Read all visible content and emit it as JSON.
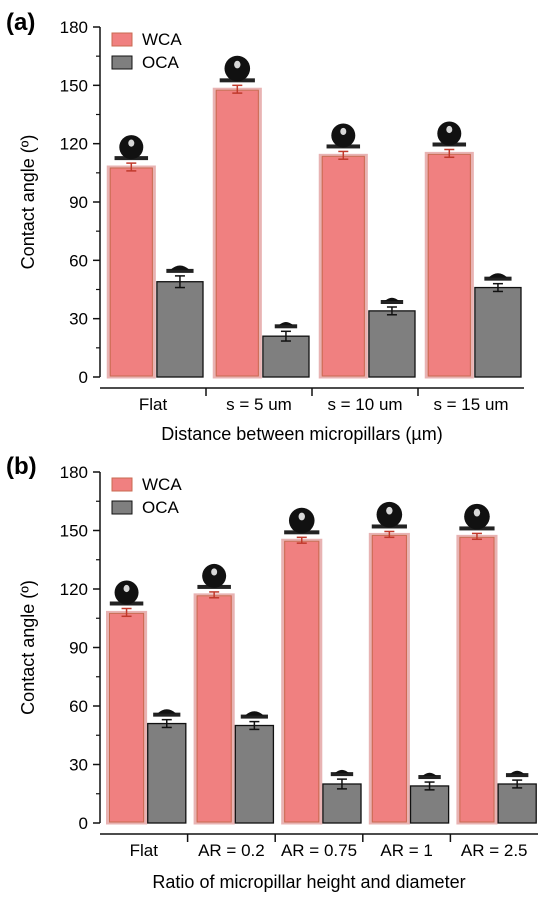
{
  "chart_data": [
    {
      "panel_label": "(a)",
      "type": "bar",
      "xlabel": "Distance between micropillars (µm)",
      "ylabel": "Contact angle (º)",
      "ylim": [
        0,
        180
      ],
      "yticks": [
        0,
        30,
        60,
        90,
        120,
        150,
        180
      ],
      "categories": [
        "Flat",
        "s = 5 um",
        "s = 10 um",
        "s = 15 um"
      ],
      "series": [
        {
          "name": "WCA",
          "values": [
            108,
            148,
            114,
            115
          ],
          "errors": [
            2,
            2,
            2,
            2
          ],
          "color": "#f08080"
        },
        {
          "name": "OCA",
          "values": [
            49,
            21,
            34,
            46
          ],
          "errors": [
            3,
            2.5,
            2,
            2
          ],
          "color": "#7f7f7f"
        }
      ],
      "legend_position": "top-left",
      "grid": false,
      "droplet_icon": "droplet-icon"
    },
    {
      "panel_label": "(b)",
      "type": "bar",
      "xlabel": "Ratio of micropillar height and diameter",
      "ylabel": "Contact angle (º)",
      "ylim": [
        0,
        180
      ],
      "yticks": [
        0,
        30,
        60,
        90,
        120,
        150,
        180
      ],
      "categories": [
        "Flat",
        "AR = 0.2",
        "AR = 0.75",
        "AR = 1",
        "AR = 2.5"
      ],
      "series": [
        {
          "name": "WCA",
          "values": [
            108,
            117,
            145,
            148,
            147
          ],
          "errors": [
            2,
            1.5,
            1.5,
            1.5,
            1.5
          ],
          "color": "#f08080"
        },
        {
          "name": "OCA",
          "values": [
            51,
            50,
            20,
            19,
            20
          ],
          "errors": [
            2,
            2,
            2.5,
            2,
            2
          ],
          "color": "#7f7f7f"
        }
      ],
      "legend_position": "top-left",
      "grid": false,
      "droplet_icon": "droplet-icon"
    }
  ]
}
